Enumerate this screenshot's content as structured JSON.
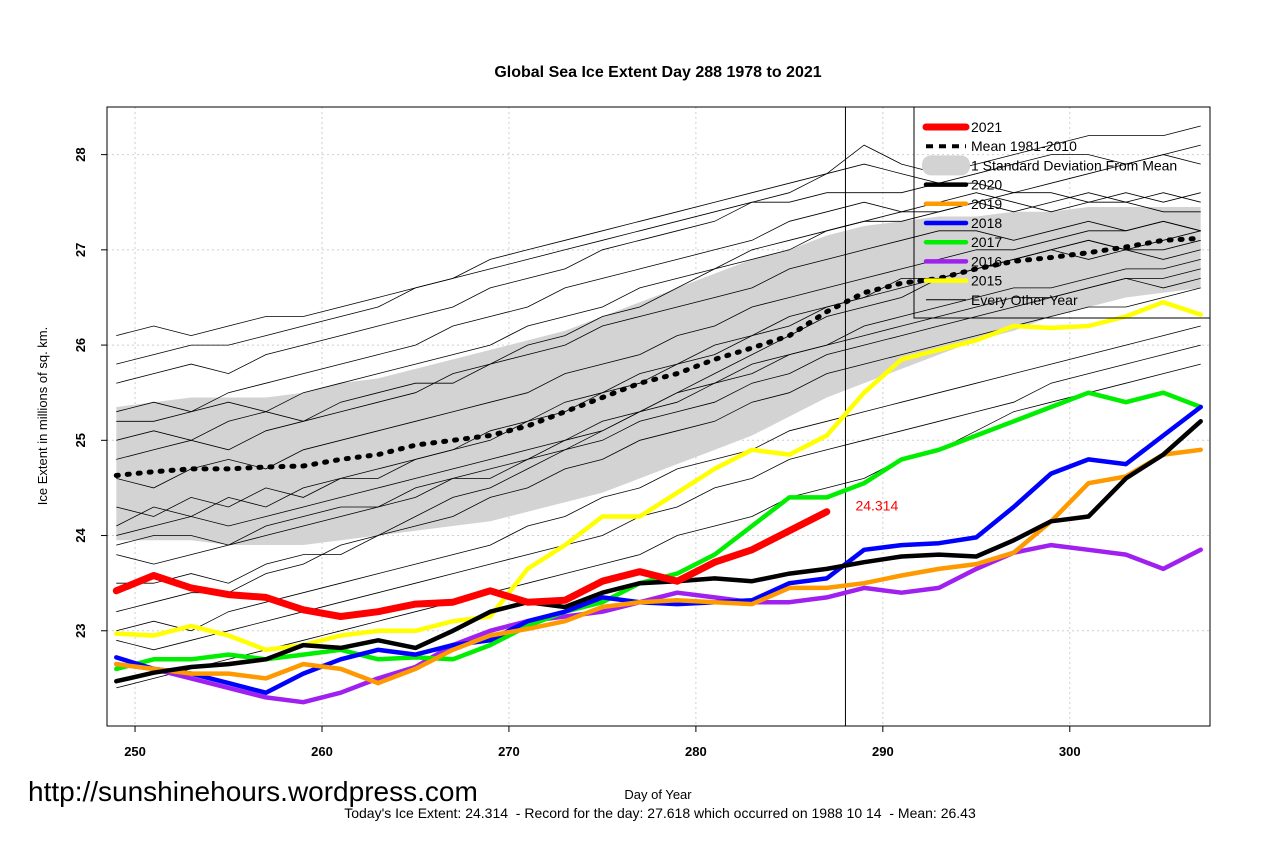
{
  "chart_data": {
    "type": "line",
    "title": "Global Sea Ice Extent Day 288 1978 to 2021",
    "xlabel": "Day of Year",
    "ylabel": "Ice Extent in millions of sq. km.",
    "xlim": [
      248.5,
      307.5
    ],
    "ylim": [
      22.0,
      28.5
    ],
    "x_ticks": [
      250,
      260,
      270,
      280,
      290,
      300
    ],
    "y_ticks": [
      23,
      24,
      25,
      26,
      27,
      28
    ],
    "grid": true,
    "legend_position": "top-right",
    "current_day": 288,
    "annotation": {
      "x": 288,
      "y": 24.314,
      "text": "24.314",
      "color": "#ff0000"
    },
    "band_series": "1 Standard Deviation From Mean",
    "x": [
      249,
      251,
      253,
      255,
      257,
      259,
      261,
      263,
      265,
      267,
      269,
      271,
      273,
      275,
      277,
      279,
      281,
      283,
      285,
      287,
      289,
      291,
      293,
      295,
      297,
      299,
      301,
      303,
      305,
      307
    ],
    "band_upper": [
      25.35,
      25.4,
      25.45,
      25.45,
      25.45,
      25.5,
      25.6,
      25.65,
      25.75,
      25.85,
      25.95,
      26.05,
      26.15,
      26.3,
      26.45,
      26.6,
      26.75,
      26.9,
      27.0,
      27.15,
      27.25,
      27.3,
      27.35,
      27.35,
      27.4,
      27.4,
      27.45,
      27.45,
      27.45,
      27.45
    ],
    "band_lower": [
      23.95,
      23.95,
      23.95,
      23.9,
      23.9,
      23.9,
      23.95,
      24.0,
      24.05,
      24.1,
      24.15,
      24.25,
      24.35,
      24.45,
      24.6,
      24.75,
      24.9,
      25.05,
      25.25,
      25.45,
      25.6,
      25.75,
      25.9,
      26.05,
      26.15,
      26.3,
      26.4,
      26.5,
      26.55,
      26.6
    ],
    "series": [
      {
        "name": "Mean 1981-2010",
        "color": "#000000",
        "style": "dotted",
        "values": [
          24.63,
          24.67,
          24.7,
          24.7,
          24.72,
          24.73,
          24.8,
          24.85,
          24.95,
          25.0,
          25.05,
          25.15,
          25.3,
          25.45,
          25.6,
          25.7,
          25.85,
          25.97,
          26.1,
          26.35,
          26.55,
          26.65,
          26.7,
          26.8,
          26.88,
          26.92,
          26.97,
          27.03,
          27.1,
          27.12
        ]
      },
      {
        "name": "2020",
        "color": "#000000",
        "style": "solid",
        "values": [
          22.47,
          22.56,
          22.62,
          22.65,
          22.7,
          22.85,
          22.82,
          22.9,
          22.82,
          23.0,
          23.2,
          23.3,
          23.25,
          23.4,
          23.5,
          23.52,
          23.55,
          23.52,
          23.6,
          23.65,
          23.72,
          23.78,
          23.8,
          23.78,
          23.95,
          24.15,
          24.2,
          24.6,
          24.85,
          25.2
        ]
      },
      {
        "name": "2019",
        "color": "#ff9900",
        "style": "solid",
        "values": [
          22.65,
          22.6,
          22.55,
          22.55,
          22.5,
          22.65,
          22.6,
          22.45,
          22.6,
          22.8,
          22.95,
          23.02,
          23.1,
          23.25,
          23.3,
          23.32,
          23.3,
          23.28,
          23.45,
          23.45,
          23.5,
          23.58,
          23.65,
          23.7,
          23.82,
          24.15,
          24.55,
          24.62,
          24.85,
          24.9
        ]
      },
      {
        "name": "2018",
        "color": "#0000ff",
        "style": "solid",
        "values": [
          22.72,
          22.6,
          22.55,
          22.45,
          22.35,
          22.55,
          22.7,
          22.8,
          22.75,
          22.85,
          22.9,
          23.1,
          23.2,
          23.35,
          23.3,
          23.28,
          23.3,
          23.32,
          23.5,
          23.55,
          23.85,
          23.9,
          23.92,
          23.98,
          24.3,
          24.65,
          24.8,
          24.75,
          25.05,
          25.35
        ]
      },
      {
        "name": "2017",
        "color": "#00ee00",
        "style": "solid",
        "values": [
          22.6,
          22.7,
          22.7,
          22.75,
          22.7,
          22.75,
          22.8,
          22.7,
          22.72,
          22.7,
          22.85,
          23.05,
          23.2,
          23.3,
          23.5,
          23.6,
          23.8,
          24.1,
          24.4,
          24.4,
          24.55,
          24.8,
          24.9,
          25.05,
          25.2,
          25.35,
          25.5,
          25.4,
          25.5,
          25.35
        ]
      },
      {
        "name": "2016",
        "color": "#a020f0",
        "style": "solid",
        "values": [
          22.65,
          22.6,
          22.5,
          22.4,
          22.3,
          22.25,
          22.35,
          22.5,
          22.62,
          22.85,
          23.0,
          23.1,
          23.15,
          23.2,
          23.3,
          23.4,
          23.35,
          23.3,
          23.3,
          23.35,
          23.45,
          23.4,
          23.45,
          23.65,
          23.82,
          23.9,
          23.85,
          23.8,
          23.65,
          23.85
        ]
      },
      {
        "name": "2015",
        "color": "#ffff00",
        "style": "solid",
        "values": [
          22.97,
          22.95,
          23.05,
          22.95,
          22.8,
          22.85,
          22.95,
          23.0,
          23.0,
          23.1,
          23.15,
          23.65,
          23.9,
          24.2,
          24.2,
          24.45,
          24.7,
          24.9,
          24.85,
          25.05,
          25.5,
          25.85,
          25.95,
          26.05,
          26.2,
          26.18,
          26.2,
          26.3,
          26.45,
          26.32
        ]
      },
      {
        "name": "2021",
        "color": "#ff0000",
        "style": "solid",
        "values": [
          23.42,
          23.58,
          23.45,
          23.38,
          23.35,
          23.22,
          23.15,
          23.2,
          23.28,
          23.3,
          23.42,
          23.3,
          23.32,
          23.52,
          23.62,
          23.52,
          23.72,
          23.85,
          24.05,
          24.25,
          null,
          null,
          null,
          null,
          null,
          null,
          null,
          null,
          null,
          null
        ]
      }
    ],
    "every_other_year": [
      [
        24.3,
        24.2,
        24.4,
        24.3,
        24.5,
        24.4,
        24.6,
        24.7,
        24.8,
        24.9,
        25.0,
        25.2,
        25.3,
        25.5,
        25.6,
        25.8,
        25.9,
        26.1,
        26.2,
        26.4,
        26.5,
        26.6,
        26.7,
        26.8,
        26.9,
        27.0,
        27.1,
        27.0,
        27.1,
        27.2
      ],
      [
        25.6,
        25.7,
        25.8,
        25.7,
        25.9,
        26.0,
        26.1,
        26.2,
        26.3,
        26.4,
        26.6,
        26.7,
        26.8,
        27.0,
        27.1,
        27.2,
        27.3,
        27.5,
        27.6,
        27.8,
        28.1,
        27.9,
        27.8,
        27.9,
        28.0,
        28.1,
        28.2,
        28.2,
        28.2,
        28.3
      ],
      [
        23.2,
        23.3,
        23.4,
        23.4,
        23.6,
        23.7,
        23.9,
        24.0,
        24.2,
        24.4,
        24.5,
        24.7,
        24.9,
        25.1,
        25.3,
        25.5,
        25.7,
        25.9,
        26.1,
        26.3,
        26.4,
        26.5,
        26.7,
        26.8,
        26.9,
        27.0,
        27.1,
        27.0,
        26.9,
        27.0
      ],
      [
        26.1,
        26.2,
        26.1,
        26.2,
        26.3,
        26.3,
        26.4,
        26.5,
        26.6,
        26.7,
        26.9,
        27.0,
        27.1,
        27.2,
        27.3,
        27.4,
        27.5,
        27.6,
        27.7,
        27.8,
        27.9,
        27.8,
        27.7,
        27.8,
        27.9,
        28.0,
        28.0,
        27.9,
        28.0,
        28.1
      ],
      [
        24.8,
        24.9,
        25.0,
        24.9,
        25.1,
        25.2,
        25.3,
        25.4,
        25.5,
        25.7,
        25.8,
        26.0,
        26.1,
        26.3,
        26.4,
        26.6,
        26.8,
        26.9,
        27.0,
        27.2,
        27.3,
        27.4,
        27.4,
        27.5,
        27.4,
        27.5,
        27.6,
        27.5,
        27.6,
        27.5
      ],
      [
        23.8,
        23.7,
        23.8,
        23.9,
        24.0,
        24.1,
        24.2,
        24.3,
        24.4,
        24.6,
        24.7,
        24.8,
        25.0,
        25.1,
        25.3,
        25.4,
        25.6,
        25.7,
        25.9,
        26.0,
        26.1,
        26.2,
        26.3,
        26.4,
        26.5,
        26.5,
        26.6,
        26.7,
        26.7,
        26.8
      ],
      [
        22.9,
        22.8,
        22.9,
        23.0,
        23.1,
        23.2,
        23.3,
        23.4,
        23.5,
        23.6,
        23.7,
        23.8,
        23.9,
        24.0,
        24.2,
        24.3,
        24.5,
        24.6,
        24.8,
        24.9,
        25.0,
        25.1,
        25.2,
        25.3,
        25.4,
        25.6,
        25.7,
        25.8,
        25.9,
        26.0
      ],
      [
        25.0,
        25.1,
        25.0,
        25.2,
        25.3,
        25.2,
        25.4,
        25.5,
        25.6,
        25.6,
        25.8,
        25.9,
        26.0,
        26.2,
        26.3,
        26.4,
        26.5,
        26.6,
        26.8,
        26.9,
        27.0,
        27.1,
        27.2,
        27.2,
        27.1,
        27.2,
        27.3,
        27.2,
        27.3,
        27.2
      ],
      [
        24.0,
        24.1,
        24.2,
        24.1,
        24.2,
        24.3,
        24.4,
        24.5,
        24.6,
        24.7,
        24.8,
        24.9,
        25.0,
        25.2,
        25.3,
        25.5,
        25.6,
        25.8,
        25.9,
        26.0,
        26.2,
        26.3,
        26.4,
        26.5,
        26.6,
        26.6,
        26.7,
        26.8,
        26.8,
        26.9
      ],
      [
        25.3,
        25.4,
        25.3,
        25.5,
        25.6,
        25.7,
        25.8,
        25.9,
        26.0,
        26.2,
        26.3,
        26.4,
        26.6,
        26.7,
        26.8,
        26.9,
        27.0,
        27.1,
        27.3,
        27.4,
        27.5,
        27.4,
        27.5,
        27.6,
        27.5,
        27.4,
        27.5,
        27.6,
        27.5,
        27.6
      ],
      [
        23.5,
        23.5,
        23.6,
        23.5,
        23.7,
        23.8,
        23.8,
        24.0,
        24.1,
        24.2,
        24.4,
        24.5,
        24.7,
        24.8,
        25.0,
        25.1,
        25.2,
        25.4,
        25.5,
        25.7,
        25.8,
        25.9,
        26.0,
        26.1,
        26.2,
        26.3,
        26.4,
        26.4,
        26.5,
        26.6
      ],
      [
        24.6,
        24.5,
        24.7,
        24.8,
        24.7,
        24.9,
        25.0,
        25.1,
        25.2,
        25.3,
        25.4,
        25.5,
        25.7,
        25.8,
        25.9,
        26.1,
        26.2,
        26.4,
        26.5,
        26.6,
        26.7,
        26.8,
        26.9,
        27.0,
        27.0,
        27.1,
        27.2,
        27.2,
        27.3,
        27.2
      ],
      [
        22.4,
        22.5,
        22.6,
        22.7,
        22.8,
        22.9,
        23.0,
        23.1,
        23.2,
        23.3,
        23.4,
        23.5,
        23.6,
        23.7,
        23.8,
        24.0,
        24.1,
        24.2,
        24.4,
        24.5,
        24.6,
        24.8,
        24.9,
        25.1,
        25.3,
        25.4,
        25.5,
        25.6,
        25.7,
        25.8
      ],
      [
        25.8,
        25.9,
        26.0,
        26.0,
        26.1,
        26.2,
        26.3,
        26.4,
        26.6,
        26.7,
        26.8,
        26.9,
        27.0,
        27.1,
        27.2,
        27.3,
        27.4,
        27.5,
        27.5,
        27.6,
        27.6,
        27.6,
        27.7,
        27.7,
        27.6,
        27.6,
        27.5,
        27.5,
        27.4,
        27.4
      ],
      [
        24.1,
        24.3,
        24.2,
        24.4,
        24.3,
        24.5,
        24.6,
        24.6,
        24.8,
        24.9,
        25.1,
        25.2,
        25.4,
        25.5,
        25.7,
        25.8,
        26.0,
        26.1,
        26.3,
        26.4,
        26.5,
        26.7,
        26.7,
        26.8,
        26.9,
        27.0,
        26.9,
        27.0,
        27.0,
        27.1
      ],
      [
        23.0,
        23.1,
        23.0,
        23.2,
        23.3,
        23.4,
        23.5,
        23.6,
        23.7,
        23.8,
        23.9,
        24.1,
        24.2,
        24.4,
        24.5,
        24.7,
        24.8,
        24.9,
        25.1,
        25.2,
        25.3,
        25.4,
        25.5,
        25.6,
        25.7,
        25.8,
        25.9,
        26.0,
        26.1,
        26.2
      ],
      [
        25.2,
        25.2,
        25.3,
        25.4,
        25.3,
        25.5,
        25.6,
        25.7,
        25.8,
        25.9,
        26.0,
        26.2,
        26.3,
        26.4,
        26.6,
        26.7,
        26.8,
        27.0,
        27.1,
        27.2,
        27.3,
        27.3,
        27.4,
        27.5,
        27.6,
        27.7,
        27.8,
        27.9,
        28.0,
        27.9
      ],
      [
        23.9,
        24.0,
        24.0,
        23.9,
        24.1,
        24.2,
        24.3,
        24.3,
        24.5,
        24.6,
        24.6,
        24.8,
        24.9,
        25.0,
        25.2,
        25.3,
        25.4,
        25.6,
        25.7,
        25.9,
        26.0,
        26.1,
        26.2,
        26.3,
        26.4,
        26.5,
        26.6,
        26.7,
        26.6,
        26.7
      ]
    ],
    "legend": [
      {
        "label": "2021",
        "color": "#ff0000",
        "kind": "thick"
      },
      {
        "label": "Mean 1981-2010",
        "color": "#000000",
        "kind": "dashed"
      },
      {
        "label": "1 Standard Deviation From Mean",
        "color": "#d3d3d3",
        "kind": "band"
      },
      {
        "label": "2020",
        "color": "#000000",
        "kind": "thick"
      },
      {
        "label": "2019",
        "color": "#ff9900",
        "kind": "thick"
      },
      {
        "label": "2018",
        "color": "#0000ff",
        "kind": "thick"
      },
      {
        "label": "2017",
        "color": "#00ee00",
        "kind": "thick"
      },
      {
        "label": "2016",
        "color": "#a020f0",
        "kind": "thick"
      },
      {
        "label": "2015",
        "color": "#ffff00",
        "kind": "thick"
      },
      {
        "label": "Every Other Year",
        "color": "#000000",
        "kind": "thin"
      }
    ]
  },
  "watermark_url": "http://sunshinehours.wordpress.com",
  "footer_text": "Today's Ice Extent: 24.314  - Record for the day: 27.618 which occurred on 1988 10 14  - Mean: 26.43"
}
